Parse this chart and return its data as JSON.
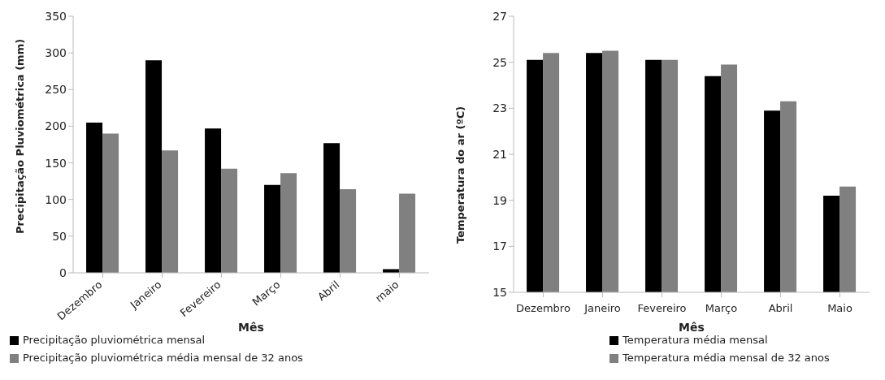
{
  "chart_data": [
    {
      "type": "bar",
      "xlabel": "Mês",
      "ylabel": "Precipitação Pluviométrica (mm)",
      "categories": [
        "Dezembro",
        "Janeiro",
        "Fevereiro",
        "Março",
        "Abril",
        "maio"
      ],
      "series": [
        {
          "name": "Precipitação pluviométrica mensal",
          "color": "#000000",
          "values": [
            205,
            290,
            197,
            120,
            177,
            5
          ]
        },
        {
          "name": "Precipitação pluviométrica média mensal de 32 anos",
          "color": "#808080",
          "values": [
            190,
            167,
            142,
            136,
            114,
            108
          ]
        }
      ],
      "ylim": [
        0,
        350
      ],
      "yticks": [
        0,
        50,
        100,
        150,
        200,
        250,
        300,
        350
      ],
      "legend": "bottom",
      "grid": false
    },
    {
      "type": "bar",
      "xlabel": "Mês",
      "ylabel": "Temperatura do ar  (ºC)",
      "categories": [
        "Dezembro",
        "Janeiro",
        "Fevereiro",
        "Março",
        "Abril",
        "Maio"
      ],
      "series": [
        {
          "name": "Temperatura média mensal",
          "color": "#000000",
          "values": [
            25.1,
            25.4,
            25.1,
            24.4,
            22.9,
            19.2
          ]
        },
        {
          "name": "Temperatura média mensal de 32 anos",
          "color": "#808080",
          "values": [
            25.4,
            25.5,
            25.1,
            24.9,
            23.3,
            19.6
          ]
        }
      ],
      "ylim": [
        15,
        27
      ],
      "yticks": [
        15,
        17,
        19,
        21,
        23,
        25,
        27
      ],
      "legend": "bottom",
      "grid": false
    }
  ]
}
